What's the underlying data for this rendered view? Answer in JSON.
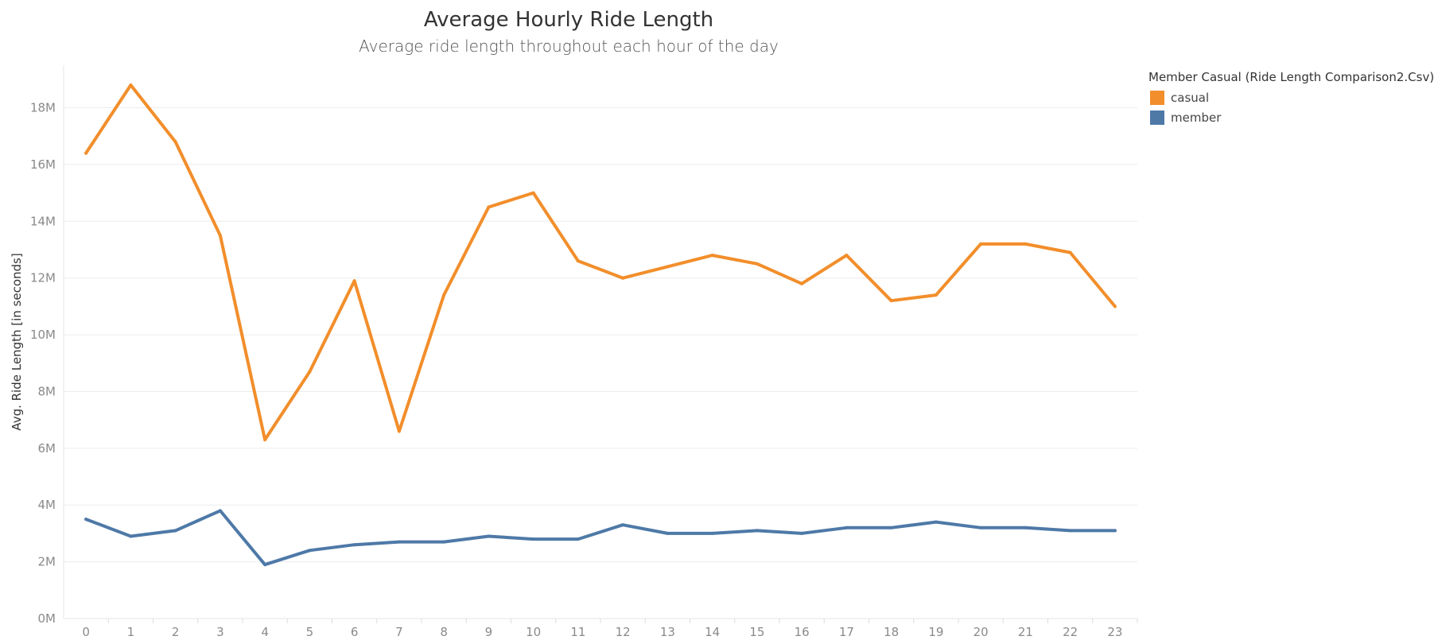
{
  "chart_data": {
    "type": "line",
    "title": "Average Hourly Ride Length",
    "subtitle": "Average ride length throughout each hour of the day",
    "ylabel": "Avg. Ride Length [in seconds]",
    "xlabel": "",
    "categories": [
      "0",
      "1",
      "2",
      "3",
      "4",
      "5",
      "6",
      "7",
      "8",
      "9",
      "10",
      "11",
      "12",
      "13",
      "14",
      "15",
      "16",
      "17",
      "18",
      "19",
      "20",
      "21",
      "22",
      "23"
    ],
    "ylim": [
      0,
      19.5
    ],
    "yticks": [
      0,
      2,
      4,
      6,
      8,
      10,
      12,
      14,
      16,
      18
    ],
    "ytick_labels": [
      "0M",
      "2M",
      "4M",
      "6M",
      "8M",
      "10M",
      "12M",
      "14M",
      "16M",
      "18M"
    ],
    "grid": true,
    "legend": {
      "title": "Member Casual (Ride Length Comparison2.Csv)",
      "placement": "top-right"
    },
    "series": [
      {
        "name": "casual",
        "color": "#F28E2B",
        "values": [
          16.4,
          18.8,
          16.8,
          13.5,
          6.3,
          8.7,
          11.9,
          6.6,
          11.4,
          14.5,
          15.0,
          12.6,
          12.0,
          12.4,
          12.8,
          12.5,
          11.8,
          12.8,
          11.2,
          11.4,
          13.2,
          13.2,
          12.9,
          11.0
        ]
      },
      {
        "name": "member",
        "color": "#4E79A7",
        "values": [
          3.5,
          2.9,
          3.1,
          3.8,
          1.9,
          2.4,
          2.6,
          2.7,
          2.7,
          2.9,
          2.8,
          2.8,
          3.3,
          3.0,
          3.0,
          3.1,
          3.0,
          3.2,
          3.2,
          3.4,
          3.2,
          3.2,
          3.1,
          3.1
        ]
      }
    ]
  }
}
